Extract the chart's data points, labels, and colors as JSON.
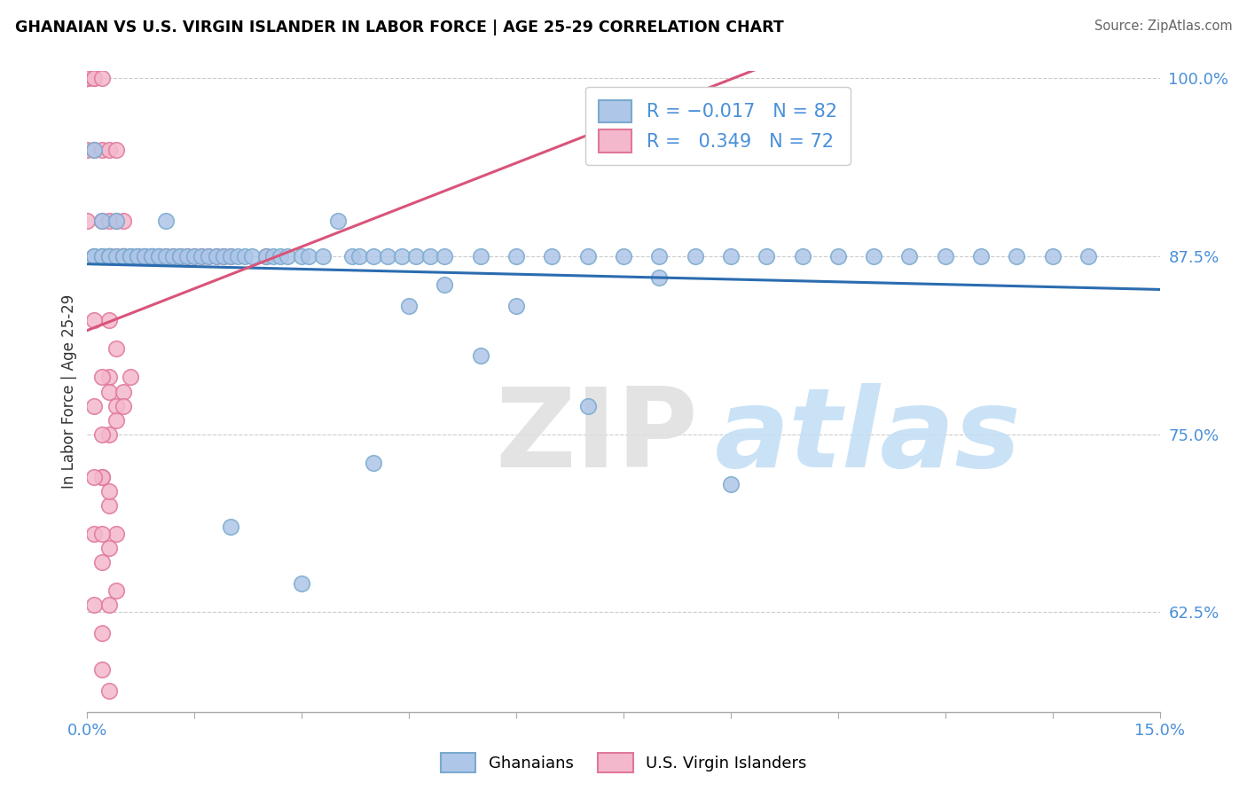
{
  "title": "GHANAIAN VS U.S. VIRGIN ISLANDER IN LABOR FORCE | AGE 25-29 CORRELATION CHART",
  "source": "Source: ZipAtlas.com",
  "ylabel": "In Labor Force | Age 25-29",
  "xlim": [
    0.0,
    0.15
  ],
  "ylim": [
    0.555,
    1.005
  ],
  "ytick_positions": [
    0.625,
    0.75,
    0.875,
    1.0
  ],
  "ytick_labels": [
    "62.5%",
    "75.0%",
    "87.5%",
    "100.0%"
  ],
  "blue_color": "#aec6e8",
  "blue_edge": "#7aaace",
  "pink_color": "#f4b8cc",
  "pink_edge": "#e07898",
  "blue_line_color": "#2b6cb0",
  "pink_line_color": "#d9547a",
  "legend_blue_label": "R = −0.017   N = 82",
  "legend_pink_label": "R =   0.349   N = 72",
  "legend_label_blue": "Ghanaians",
  "legend_label_pink": "U.S. Virgin Islanders",
  "blue_points_x": [
    0.001,
    0.001,
    0.001,
    0.002,
    0.002,
    0.002,
    0.003,
    0.003,
    0.003,
    0.004,
    0.004,
    0.005,
    0.005,
    0.006,
    0.006,
    0.007,
    0.007,
    0.008,
    0.008,
    0.009,
    0.009,
    0.01,
    0.01,
    0.011,
    0.011,
    0.012,
    0.013,
    0.013,
    0.014,
    0.015,
    0.016,
    0.017,
    0.018,
    0.019,
    0.02,
    0.021,
    0.022,
    0.023,
    0.025,
    0.026,
    0.027,
    0.028,
    0.03,
    0.031,
    0.033,
    0.035,
    0.037,
    0.038,
    0.04,
    0.042,
    0.044,
    0.046,
    0.048,
    0.05,
    0.055,
    0.06,
    0.065,
    0.07,
    0.075,
    0.08,
    0.085,
    0.09,
    0.095,
    0.1,
    0.105,
    0.11,
    0.115,
    0.12,
    0.125,
    0.13,
    0.135,
    0.14,
    0.09,
    0.04,
    0.055,
    0.07,
    0.03,
    0.02,
    0.08,
    0.06,
    0.05,
    0.045
  ],
  "blue_points_y": [
    0.875,
    0.875,
    0.95,
    0.875,
    0.9,
    0.875,
    0.875,
    0.875,
    0.875,
    0.875,
    0.9,
    0.875,
    0.875,
    0.875,
    0.875,
    0.875,
    0.875,
    0.875,
    0.875,
    0.875,
    0.875,
    0.875,
    0.875,
    0.875,
    0.9,
    0.875,
    0.875,
    0.875,
    0.875,
    0.875,
    0.875,
    0.875,
    0.875,
    0.875,
    0.875,
    0.875,
    0.875,
    0.875,
    0.875,
    0.875,
    0.875,
    0.875,
    0.875,
    0.875,
    0.875,
    0.9,
    0.875,
    0.875,
    0.875,
    0.875,
    0.875,
    0.875,
    0.875,
    0.875,
    0.875,
    0.875,
    0.875,
    0.875,
    0.875,
    0.875,
    0.875,
    0.875,
    0.875,
    0.875,
    0.875,
    0.875,
    0.875,
    0.875,
    0.875,
    0.875,
    0.875,
    0.875,
    0.715,
    0.73,
    0.805,
    0.77,
    0.645,
    0.685,
    0.86,
    0.84,
    0.855,
    0.84
  ],
  "pink_points_x": [
    0.0,
    0.0,
    0.0,
    0.0,
    0.0,
    0.0,
    0.0,
    0.0,
    0.001,
    0.001,
    0.001,
    0.001,
    0.002,
    0.002,
    0.002,
    0.002,
    0.003,
    0.003,
    0.003,
    0.003,
    0.004,
    0.004,
    0.004,
    0.005,
    0.005,
    0.005,
    0.006,
    0.007,
    0.008,
    0.009,
    0.01,
    0.011,
    0.012,
    0.013,
    0.014,
    0.015,
    0.016,
    0.017,
    0.018,
    0.019,
    0.02,
    0.025,
    0.003,
    0.003,
    0.004,
    0.003,
    0.002,
    0.002,
    0.001,
    0.001,
    0.002,
    0.003,
    0.004,
    0.005,
    0.001,
    0.002,
    0.003,
    0.004,
    0.002,
    0.001,
    0.001,
    0.002,
    0.003,
    0.004,
    0.003,
    0.002,
    0.003,
    0.004,
    0.005,
    0.006,
    0.003,
    0.002
  ],
  "pink_points_y": [
    1.0,
    1.0,
    1.0,
    1.0,
    1.0,
    1.0,
    0.95,
    0.9,
    1.0,
    1.0,
    0.95,
    0.875,
    1.0,
    0.95,
    0.9,
    0.875,
    0.95,
    0.9,
    0.875,
    0.875,
    0.95,
    0.9,
    0.875,
    0.9,
    0.875,
    0.875,
    0.875,
    0.875,
    0.875,
    0.875,
    0.875,
    0.875,
    0.875,
    0.875,
    0.875,
    0.875,
    0.875,
    0.875,
    0.875,
    0.875,
    0.875,
    0.875,
    0.83,
    0.79,
    0.81,
    0.75,
    0.79,
    0.72,
    0.83,
    0.77,
    0.75,
    0.78,
    0.77,
    0.78,
    0.68,
    0.72,
    0.7,
    0.68,
    0.66,
    0.63,
    0.72,
    0.68,
    0.71,
    0.76,
    0.63,
    0.61,
    0.67,
    0.64,
    0.77,
    0.79,
    0.57,
    0.585
  ]
}
